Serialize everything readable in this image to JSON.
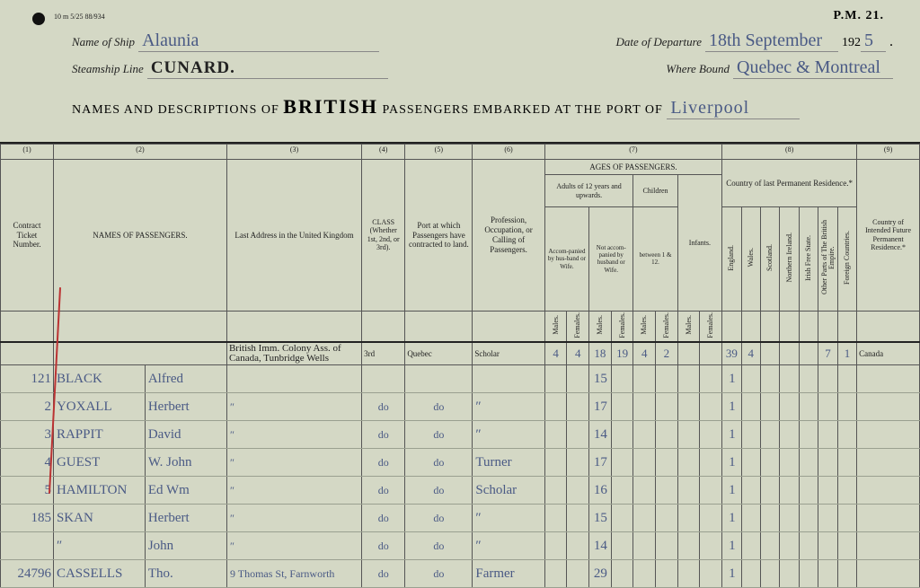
{
  "form": {
    "small_print": "10 m 5/25  88/934",
    "form_code": "P.M. 21.",
    "name_of_ship_label": "Name of Ship",
    "ship_name": "Alaunia",
    "departure_label": "Date of Departure",
    "departure_value": "18th September",
    "year_prefix": "192",
    "year_suffix": "5",
    "steamship_label": "Steamship Line",
    "steamship_value": "CUNARD.",
    "bound_label": "Where Bound",
    "bound_value": "Quebec & Montreal",
    "title_a": "NAMES AND DESCRIPTIONS OF",
    "title_b": "BRITISH",
    "title_c": "PASSENGERS EMBARKED AT THE PORT OF",
    "port": "Liverpool"
  },
  "columns": {
    "nums": [
      "(1)",
      "(2)",
      "(3)",
      "(4)",
      "(5)",
      "(6)",
      "(7)",
      "(8)",
      "(9)"
    ],
    "h1": "Contract Ticket Number.",
    "h2": "NAMES OF PASSENGERS.",
    "h3": "Last Address in the United Kingdom",
    "h4": "CLASS (Whether 1st, 2nd, or 3rd).",
    "h5": "Port at which Passengers have contracted to land.",
    "h6": "Profession, Occupation, or Calling of Passengers.",
    "h7": "AGES OF PASSENGERS.",
    "h7a": "Adults of 12 years and upwards.",
    "h7a1": "Accom-panied by hus-band or Wife.",
    "h7a2": "Not accom-panied by husband or Wife.",
    "h7b": "Children",
    "h7b1": "between 1 & 12.",
    "h7c": "Infants.",
    "h8": "Country of last Permanent Residence.*",
    "h8_sub": [
      "England.",
      "Wales.",
      "Scotland.",
      "Northern Ireland.",
      "Irish Free State.",
      "Other Parts of The British Empire.",
      "Foreign Countries."
    ],
    "h9": "Country of Intended Future Permanent Residence.*",
    "mf": [
      "Males.",
      "Females.",
      "Males.",
      "Females.",
      "Males.",
      "Females.",
      "Males.",
      "Females."
    ]
  },
  "totals": {
    "address": "British Imm. Colony Ass. of Canada, Tunbridge Wells",
    "class": "3rd",
    "port": "Quebec",
    "prof": "Scholar",
    "m1": "4",
    "f1": "4",
    "m2": "18",
    "f2": "19",
    "m3": "4",
    "f3": "2",
    "eng": "39",
    "wal": "4",
    "nir": "",
    "ifs": "",
    "obe": "7",
    "fc": "1",
    "dest": "Canada"
  },
  "rows": [
    {
      "tkt": "121",
      "surname": "Black",
      "first": "Alfred",
      "addr": "",
      "class": "",
      "port": "",
      "prof": "",
      "age": "15",
      "eng": "1"
    },
    {
      "tkt": "2",
      "surname": "Yoxall",
      "first": "Herbert",
      "addr": "″",
      "class": "do",
      "port": "do",
      "prof": "″",
      "age": "17",
      "eng": "1"
    },
    {
      "tkt": "3",
      "surname": "Rappit",
      "first": "David",
      "addr": "″",
      "class": "do",
      "port": "do",
      "prof": "″",
      "age": "14",
      "eng": "1"
    },
    {
      "tkt": "4",
      "surname": "Guest",
      "first": "W. John",
      "addr": "″",
      "class": "do",
      "port": "do",
      "prof": "Turner",
      "age": "17",
      "eng": "1"
    },
    {
      "tkt": "5",
      "surname": "Hamilton",
      "first": "Ed Wm",
      "addr": "″",
      "class": "do",
      "port": "do",
      "prof": "Scholar",
      "age": "16",
      "eng": "1"
    },
    {
      "tkt": "185",
      "surname": "Skan",
      "first": "Herbert",
      "addr": "″",
      "class": "do",
      "port": "do",
      "prof": "″",
      "age": "15",
      "eng": "1"
    },
    {
      "tkt": "",
      "surname": "″",
      "first": "John",
      "addr": "″",
      "class": "do",
      "port": "do",
      "prof": "″",
      "age": "14",
      "eng": "1"
    },
    {
      "tkt": "24796",
      "surname": "Cassells",
      "first": "Tho.",
      "addr": "9 Thomas St, Farnworth",
      "class": "do",
      "port": "do",
      "prof": "Farmer",
      "age": "29",
      "eng": "1"
    }
  ],
  "col_widths": {
    "tkt": 55,
    "surname": 95,
    "first": 85,
    "addr": 140,
    "class": 45,
    "port": 70,
    "prof": 75,
    "age_sub": 23,
    "res_sub": 20,
    "dest": 65
  },
  "colors": {
    "bg": "#d4d8c5",
    "ink": "#222",
    "script": "#4a5a85",
    "red": "#b33"
  }
}
